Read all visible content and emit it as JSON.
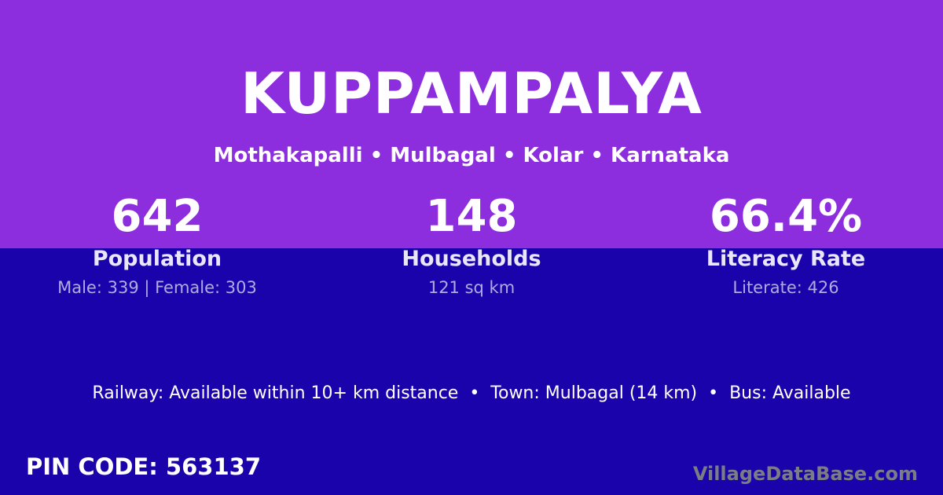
{
  "page": {
    "title": "KUPPAMPALYA",
    "subtitle": "Mothakapalli • Mulbagal • Kolar • Karnataka"
  },
  "stats": [
    {
      "value": "642",
      "label": "Population",
      "detail": "Male: 339 | Female: 303"
    },
    {
      "value": "148",
      "label": "Households",
      "detail": "121 sq km"
    },
    {
      "value": "66.4%",
      "label": "Literacy Rate",
      "detail": "Literate: 426"
    }
  ],
  "info_line": "Railway: Available within 10+ km distance  •  Town: Mulbagal (14 km)  •  Bus: Available",
  "footer": {
    "pin_code": "PIN CODE: 563137",
    "watermark": "VillageDataBase.com"
  },
  "colors": {
    "purple": "#8C2DDE",
    "indigo": "#1A03AA",
    "text_white": "#FFFFFF",
    "watermark_gray": "#7B7C85"
  }
}
